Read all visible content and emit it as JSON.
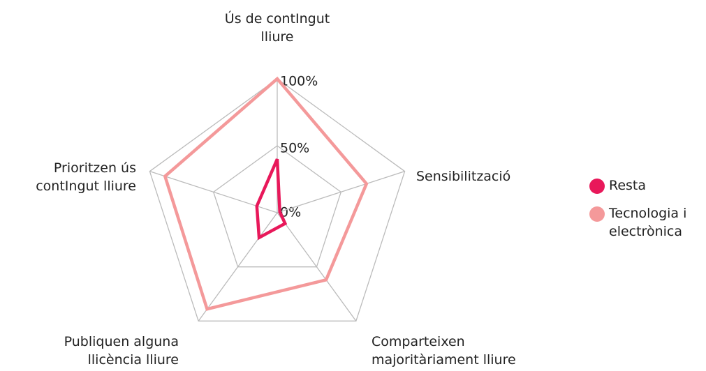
{
  "chart_data": {
    "type": "radar",
    "categories": [
      "Ús de contIngut lliure",
      "Sensibilització",
      "Comparteixen majoritàriament lliure",
      "Publiquen alguna llicència lliure",
      "Prioritzen ús contIngut lliure"
    ],
    "series": [
      {
        "name": "Resta",
        "color": "#e8185a",
        "values": [
          40,
          2,
          10,
          23,
          16
        ]
      },
      {
        "name": "Tecnologia i electrònica",
        "color": "#f4999a",
        "values": [
          100,
          70,
          62,
          89,
          88
        ]
      }
    ],
    "ylim": [
      0,
      100
    ],
    "yticks": [
      {
        "value": 0,
        "label": "0%"
      },
      {
        "value": 50,
        "label": "50%"
      },
      {
        "value": 100,
        "label": "100%"
      }
    ],
    "grid": true,
    "legend": "right"
  }
}
